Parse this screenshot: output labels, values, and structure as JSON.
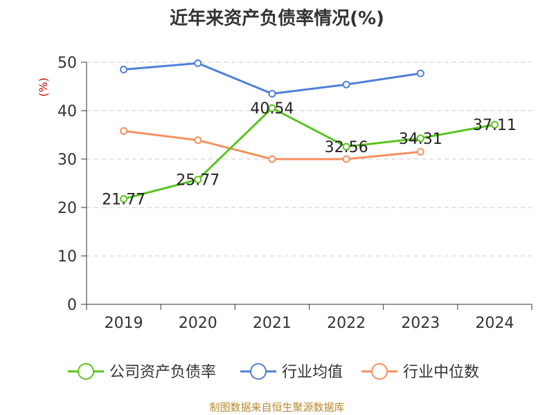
{
  "title": "近年来资产负债率情况(%)",
  "source": "制图数据来自恒生聚源数据库",
  "chart_data": {
    "type": "line",
    "title": "近年来资产负债率情况(%)",
    "ylabel": "(%)",
    "xlabel": "",
    "ylim": [
      0,
      50
    ],
    "yticks": [
      0,
      10,
      20,
      30,
      40,
      50
    ],
    "grid": true,
    "legend_position": "bottom",
    "categories": [
      "2019",
      "2020",
      "2021",
      "2022",
      "2023",
      "2024"
    ],
    "series": [
      {
        "name": "公司资产负债率",
        "color": "#5ac31e",
        "values": [
          21.77,
          25.77,
          40.54,
          32.56,
          34.31,
          37.11
        ],
        "labels": [
          "21.77",
          "25.77",
          "40.54",
          "32.56",
          "34.31",
          "37.11"
        ]
      },
      {
        "name": "行业均值",
        "color": "#4f7fd8",
        "values": [
          48.5,
          49.8,
          43.5,
          45.4,
          47.7,
          null
        ]
      },
      {
        "name": "行业中位数",
        "color": "#f5905f",
        "values": [
          35.8,
          33.9,
          30.0,
          30.0,
          31.5,
          null
        ]
      }
    ]
  }
}
